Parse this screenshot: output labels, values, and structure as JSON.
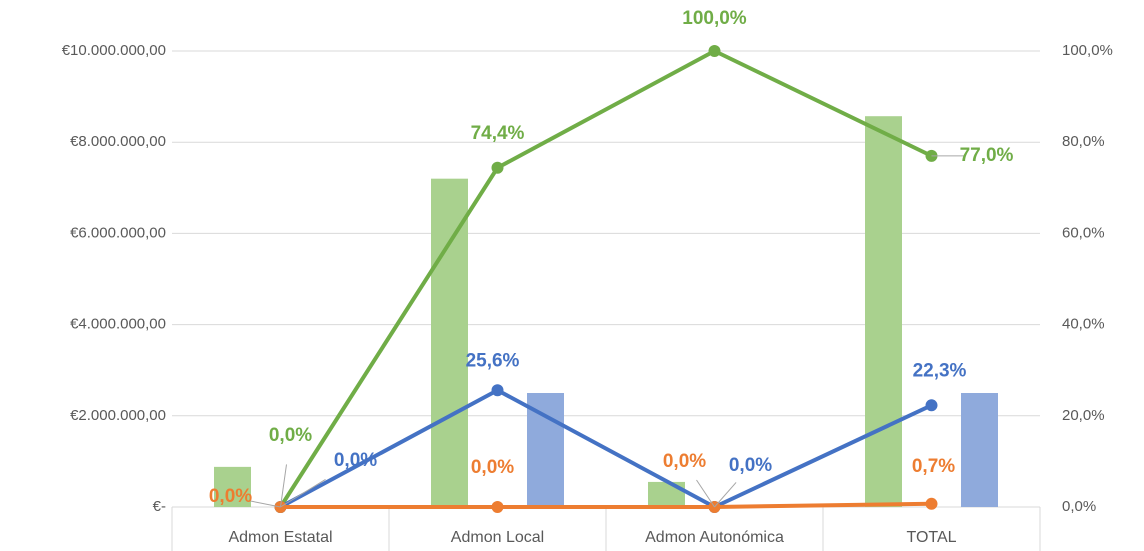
{
  "chart_data": {
    "type": "bar",
    "categories": [
      "Admon Estatal",
      "Admon Local",
      "Admon Autonómica",
      "TOTAL"
    ],
    "series": [
      {
        "type": "bar",
        "color": "#a9d18e",
        "values": [
          880000,
          7200000,
          550000,
          8570000
        ]
      },
      {
        "type": "bar",
        "color": "#f4b183",
        "values": [
          0,
          0,
          0,
          0
        ]
      },
      {
        "type": "bar",
        "color": "#8faadc",
        "values": [
          0,
          2500000,
          0,
          2500000
        ]
      },
      {
        "type": "line",
        "axis": "y2",
        "color": "#70ad47",
        "values": [
          0,
          74.4,
          100,
          77.0
        ],
        "value_labels": [
          "0,0%",
          "74,4%",
          "100,0%",
          "77,0%"
        ]
      },
      {
        "type": "line",
        "axis": "y2",
        "color": "#4472c4",
        "values": [
          0,
          25.6,
          0,
          22.3
        ],
        "value_labels": [
          "0,0%",
          "25,6%",
          "0,0%",
          "22,3%"
        ]
      },
      {
        "type": "line",
        "axis": "y2",
        "color": "#ed7d31",
        "values": [
          0,
          0,
          0,
          0.7
        ],
        "value_labels": [
          "0,0%",
          "0,0%",
          "0,0%",
          "0,7%"
        ]
      }
    ],
    "ylim": [
      0,
      10000000
    ],
    "yticks": [
      {
        "value": 0,
        "label": "€-"
      },
      {
        "value": 2000000,
        "label": "€2.000.000,00"
      },
      {
        "value": 4000000,
        "label": "€4.000.000,00"
      },
      {
        "value": 6000000,
        "label": "€6.000.000,00"
      },
      {
        "value": 8000000,
        "label": "€8.000.000,00"
      },
      {
        "value": 10000000,
        "label": "€10.000.000,00"
      }
    ],
    "y2lim": [
      0,
      100
    ],
    "y2ticks": [
      {
        "value": 0,
        "label": "0,0%"
      },
      {
        "value": 20,
        "label": "20,0%"
      },
      {
        "value": 40,
        "label": "40,0%"
      },
      {
        "value": 60,
        "label": "60,0%"
      },
      {
        "value": 80,
        "label": "80,0%"
      },
      {
        "value": 100,
        "label": "100,0%"
      }
    ],
    "grid": true
  }
}
